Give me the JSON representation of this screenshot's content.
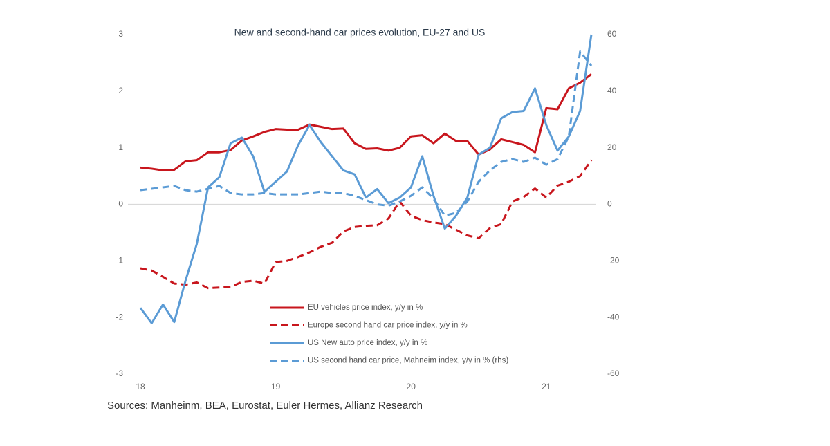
{
  "chart_data": {
    "type": "line",
    "title": "New and second-hand car prices evolution, EU-27 and US",
    "source": "Sources: Manheinm, BEA, Eurostat, Euler Hermes, Allianz Research",
    "categories": [
      "18",
      null,
      null,
      null,
      null,
      null,
      null,
      null,
      null,
      null,
      null,
      null,
      "19",
      null,
      null,
      null,
      null,
      null,
      null,
      null,
      null,
      null,
      null,
      null,
      "20",
      null,
      null,
      null,
      null,
      null,
      null,
      null,
      null,
      null,
      null,
      null,
      "21",
      null,
      null,
      null,
      null
    ],
    "ylim": [
      -3,
      3
    ],
    "yticks": [
      -3,
      -2,
      -1,
      0,
      1,
      2,
      3
    ],
    "y2lim": [
      -60,
      60
    ],
    "y2ticks": [
      -60,
      -40,
      -20,
      0,
      20,
      40,
      60
    ],
    "zero_line": true,
    "legend": "lower center",
    "series": [
      {
        "name": "EU vehicles price index, y/y in %",
        "color": "#c8161d",
        "style": "solid",
        "values": [
          0.65,
          0.63,
          0.6,
          0.61,
          0.76,
          0.78,
          0.92,
          0.92,
          0.96,
          1.13,
          1.2,
          1.28,
          1.33,
          1.32,
          1.32,
          1.41,
          1.37,
          1.33,
          1.34,
          1.08,
          0.98,
          0.99,
          0.95,
          1.0,
          1.2,
          1.22,
          1.08,
          1.25,
          1.12,
          1.12,
          0.88,
          0.97,
          1.15,
          1.1,
          1.05,
          0.92,
          1.7,
          1.68,
          2.05,
          2.15,
          2.3
        ]
      },
      {
        "name": "Europe second hand car price index, y/y in %",
        "color": "#c8161d",
        "style": "dashed",
        "values": [
          -1.13,
          -1.17,
          -1.28,
          -1.4,
          -1.42,
          -1.38,
          -1.48,
          -1.47,
          -1.46,
          -1.37,
          -1.35,
          -1.4,
          -1.02,
          -1.0,
          -0.93,
          -0.85,
          -0.75,
          -0.68,
          -0.48,
          -0.4,
          -0.38,
          -0.37,
          -0.25,
          0.05,
          -0.2,
          -0.28,
          -0.32,
          -0.35,
          -0.45,
          -0.55,
          -0.6,
          -0.42,
          -0.35,
          0.05,
          0.13,
          0.28,
          0.12,
          0.33,
          0.4,
          0.5,
          0.78
        ]
      },
      {
        "name": "US New auto price index, y/y in %",
        "color": "#5b9bd5",
        "style": "solid",
        "values": [
          -1.83,
          -2.1,
          -1.77,
          -2.08,
          -1.35,
          -0.7,
          0.3,
          0.48,
          1.08,
          1.18,
          0.85,
          0.22,
          0.4,
          0.58,
          1.05,
          1.4,
          1.1,
          0.85,
          0.6,
          0.53,
          0.12,
          0.27,
          0.02,
          0.12,
          0.3,
          0.85,
          0.15,
          -0.43,
          -0.2,
          0.12,
          0.88,
          1.0,
          1.52,
          1.63,
          1.65,
          2.05,
          1.4,
          0.95,
          1.2,
          1.65,
          3.0
        ]
      },
      {
        "name": "US second hand car price, Mahneim index, y/y in % (rhs)",
        "color": "#5b9bd5",
        "style": "dashed",
        "axis": "y2",
        "values": [
          5,
          5.5,
          6,
          6.5,
          5,
          4.5,
          5.5,
          6.5,
          4,
          3.5,
          3.5,
          4,
          3.5,
          3.5,
          3.5,
          4,
          4.5,
          4,
          4,
          3,
          1.5,
          0,
          -0.5,
          1,
          3,
          6,
          2,
          -4,
          -3,
          1,
          8,
          12,
          15,
          16,
          15,
          16.5,
          14,
          16,
          24,
          54,
          49
        ]
      }
    ]
  }
}
